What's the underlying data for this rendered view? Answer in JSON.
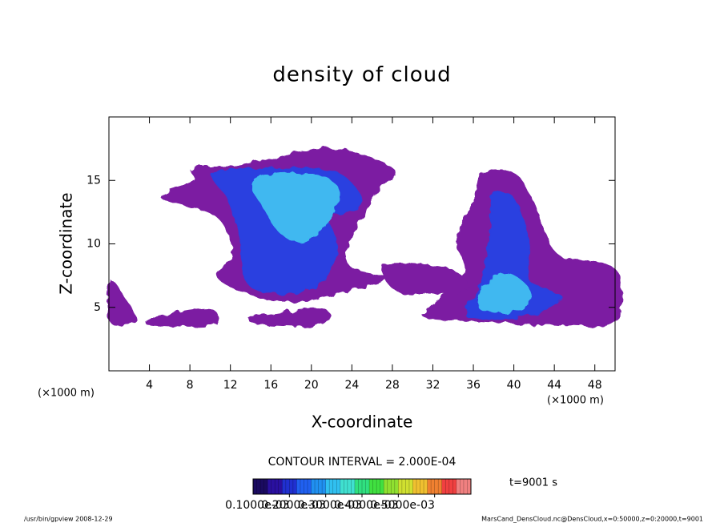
{
  "chart_data": {
    "type": "contour",
    "title": "density of cloud",
    "x_label": "X-coordinate",
    "y_label": "Z-coordinate",
    "x_unit": "(×1000 m)",
    "y_unit": "(×1000 m)",
    "xlim": [
      0,
      50
    ],
    "ylim": [
      0,
      20
    ],
    "xticks": [
      4,
      8,
      12,
      16,
      20,
      24,
      28,
      32,
      36,
      40,
      44,
      48
    ],
    "yticks": [
      5,
      10,
      15
    ],
    "regions": [
      {
        "level": 2e-05,
        "color": "#7b1fa2",
        "x": [
          8.3,
          13.0,
          21.7,
          28.1,
          26.5,
          24.1,
          23.7,
          27.3,
          24.1,
          19.4,
          14.6,
          10.7,
          12.2,
          10.7,
          5.1,
          8.3
        ],
        "y": [
          16.0,
          16.2,
          17.5,
          15.9,
          14.0,
          10.9,
          8.3,
          7.4,
          6.4,
          5.5,
          5.8,
          7.4,
          9.0,
          12.1,
          13.7,
          14.9
        ]
      },
      {
        "level": 2e-05,
        "color": "#7b1fa2",
        "x": [
          36.8,
          39.9,
          41.5,
          43.1,
          44.7,
          50,
          50,
          44.7,
          36.8,
          31.3,
          32.0,
          35.2,
          34.4,
          36.0
        ],
        "y": [
          15.6,
          15.6,
          14.0,
          10.9,
          9.0,
          8.0,
          3.9,
          3.6,
          3.9,
          4.2,
          5.2,
          7.7,
          10.2,
          13.4
        ]
      },
      {
        "level": 2e-05,
        "color": "#7b1fa2",
        "x": [
          4.3,
          9.9,
          10.2,
          4.3
        ],
        "y": [
          4.2,
          4.9,
          3.6,
          3.6
        ]
      },
      {
        "level": 2e-05,
        "color": "#7b1fa2",
        "x": [
          14.2,
          21.0,
          21.0,
          15.4
        ],
        "y": [
          4.2,
          4.9,
          3.6,
          3.6
        ]
      },
      {
        "level": 2e-05,
        "color": "#7b1fa2",
        "x": [
          27.3,
          33.6,
          35.2,
          28.9
        ],
        "y": [
          8.3,
          8.0,
          6.4,
          6.1
        ]
      },
      {
        "level": 2e-05,
        "color": "#7b1fa2",
        "x": [
          0.1,
          1.5,
          2.7,
          0.1
        ],
        "y": [
          7.1,
          5.8,
          3.9,
          3.9
        ]
      },
      {
        "level": 0.0001,
        "color": "#2a3fe0",
        "x": [
          10.3,
          15.4,
          22.5,
          25.0,
          21.7,
          22.5,
          21.7,
          18.6,
          13.8,
          13.0,
          11.8
        ],
        "y": [
          15.6,
          15.9,
          15.6,
          13.0,
          12.1,
          10.2,
          7.7,
          6.1,
          6.8,
          10.2,
          13.4
        ]
      },
      {
        "level": 0.0001,
        "color": "#2a3fe0",
        "x": [
          37.9,
          39.9,
          41.5,
          41.5,
          44.7,
          40.7,
          35.2,
          36.8,
          37.6
        ],
        "y": [
          13.7,
          13.7,
          10.2,
          7.1,
          5.8,
          4.2,
          4.4,
          6.8,
          10.2
        ]
      },
      {
        "level": 0.0002,
        "color": "#3fb8f0",
        "x": [
          14.2,
          17.8,
          22.1,
          22.5,
          19.4,
          17.0,
          15.4
        ],
        "y": [
          14.9,
          15.6,
          14.9,
          12.7,
          10.2,
          10.8,
          12.7
        ]
      },
      {
        "level": 0.0002,
        "color": "#3fb8f0",
        "x": [
          36.8,
          39.2,
          41.5,
          40.7,
          36.8
        ],
        "y": [
          6.4,
          7.7,
          6.4,
          4.8,
          4.8
        ]
      }
    ],
    "contour_interval": "CONTOUR INTERVAL = 2.000E-04",
    "time_label": "t=9001 s",
    "colorbar": {
      "lim": [
        0,
        0.0006
      ],
      "colors": [
        "#1a0a60",
        "#2a10a0",
        "#2030d0",
        "#2060f0",
        "#2090f0",
        "#30c0f0",
        "#40e0d0",
        "#30e080",
        "#40e040",
        "#90e030",
        "#d0e030",
        "#f0c030",
        "#f08030",
        "#f04040",
        "#f08080"
      ],
      "ticks": [
        {
          "value": 0.0001,
          "label": "0.1000e-03"
        },
        {
          "value": 0.0002,
          "label": "0.2000e-03"
        },
        {
          "value": 0.0003,
          "label": "0.3000e-03"
        },
        {
          "value": 0.0004,
          "label": "0.4000e-03"
        },
        {
          "value": 0.0005,
          "label": "0.5000e-03"
        }
      ]
    },
    "footer_left": "/usr/bin/gpview  2008-12-29",
    "footer_right": "MarsCand_DensCloud.nc@DensCloud,x=0:50000,z=0:20000,t=9001"
  }
}
